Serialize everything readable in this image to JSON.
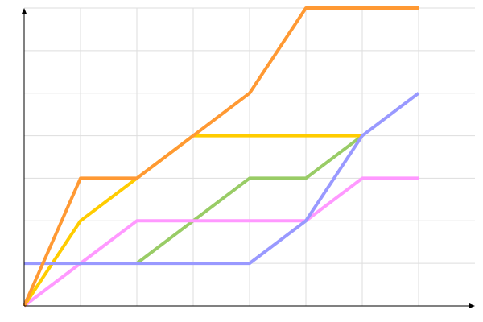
{
  "chart_data": {
    "type": "line",
    "title": "",
    "xlabel": "",
    "ylabel": "",
    "x": [
      0,
      1,
      2,
      3,
      4,
      5,
      6,
      7
    ],
    "xlim": [
      0,
      8
    ],
    "ylim": [
      0,
      7
    ],
    "grid": true,
    "legend": "none",
    "series": [
      {
        "color": "#99cc66",
        "values": [
          null,
          null,
          1,
          2,
          3,
          3,
          4,
          null
        ]
      },
      {
        "color": "#ff99ff",
        "values": [
          0,
          1,
          2,
          2,
          2,
          2,
          3,
          3
        ]
      },
      {
        "color": "#ffcc00",
        "values": [
          0,
          2,
          3,
          4,
          4,
          4,
          4,
          null
        ]
      },
      {
        "color": "#9999ff",
        "values": [
          1,
          1,
          1,
          1,
          1,
          2,
          4,
          5
        ]
      },
      {
        "color": "#ff9933",
        "values": [
          0,
          3,
          3,
          4,
          5,
          7,
          7,
          7
        ]
      }
    ]
  }
}
